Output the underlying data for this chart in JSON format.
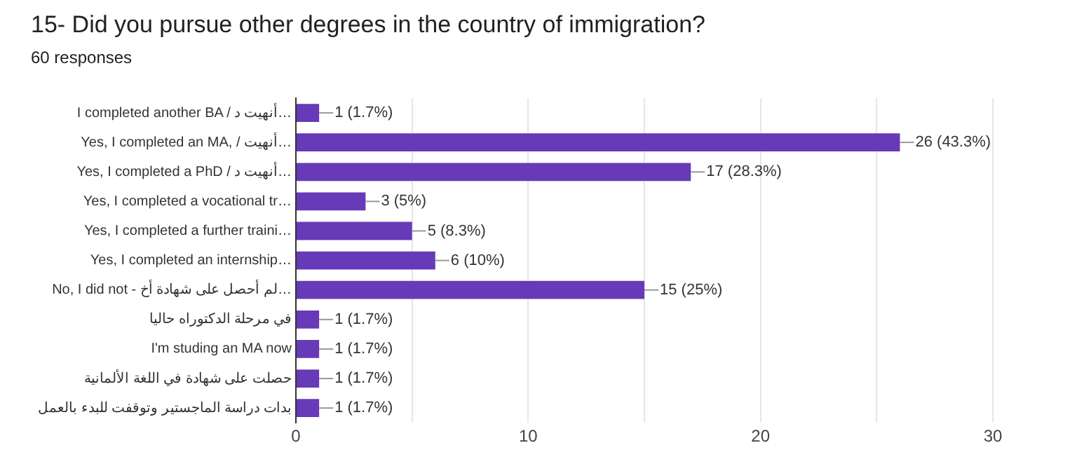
{
  "chart_data": {
    "type": "bar",
    "orientation": "horizontal",
    "title": "15- Did you pursue other degrees in the country of immigration?",
    "subtitle": "60 responses",
    "categories": [
      "I completed another BA / أنهيت د…",
      "Yes, I completed an MA, / أنهيت…",
      "Yes, I completed a PhD / أنهيت د…",
      "Yes, I completed a vocational tr…",
      "Yes, I completed a further traini…",
      "Yes, I completed an internship…",
      "No, I did not - لم أحصل على شهادة أخ…",
      "في مرحلة الدكتوراه حاليا",
      "I'm studing an MA now",
      "حصلت على شهادة في اللغة الألمانية",
      "بدات دراسة الماجستير وتوقفت للبدء بالعمل"
    ],
    "values": [
      1,
      26,
      17,
      3,
      5,
      6,
      15,
      1,
      1,
      1,
      1
    ],
    "value_labels": [
      "1 (1.7%)",
      "26 (43.3%)",
      "17 (28.3%)",
      "3 (5%)",
      "5 (8.3%)",
      "6 (10%)",
      "15 (25%)",
      "1 (1.7%)",
      "1 (1.7%)",
      "1 (1.7%)",
      "1 (1.7%)"
    ],
    "color": "#673ab7",
    "xlim": [
      0,
      30
    ],
    "xticks": [
      0,
      {
        "value": 5,
        "label": null
      },
      10,
      {
        "value": 15,
        "label": null
      },
      20,
      {
        "value": 25,
        "label": null
      },
      30
    ],
    "grid": "x",
    "legend": false
  }
}
